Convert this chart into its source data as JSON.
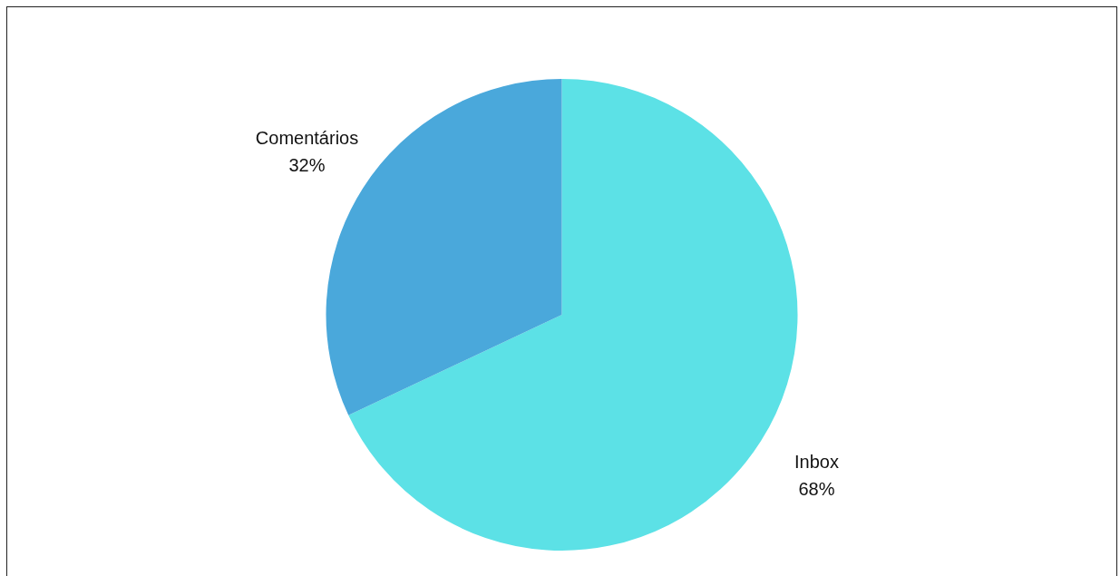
{
  "chart_data": {
    "type": "pie",
    "categories": [
      "Inbox",
      "Comentários"
    ],
    "values": [
      68,
      32
    ],
    "value_labels": [
      "68%",
      "32%"
    ],
    "colors": [
      "#5ce1e6",
      "#4aa8db"
    ],
    "legend": false
  }
}
